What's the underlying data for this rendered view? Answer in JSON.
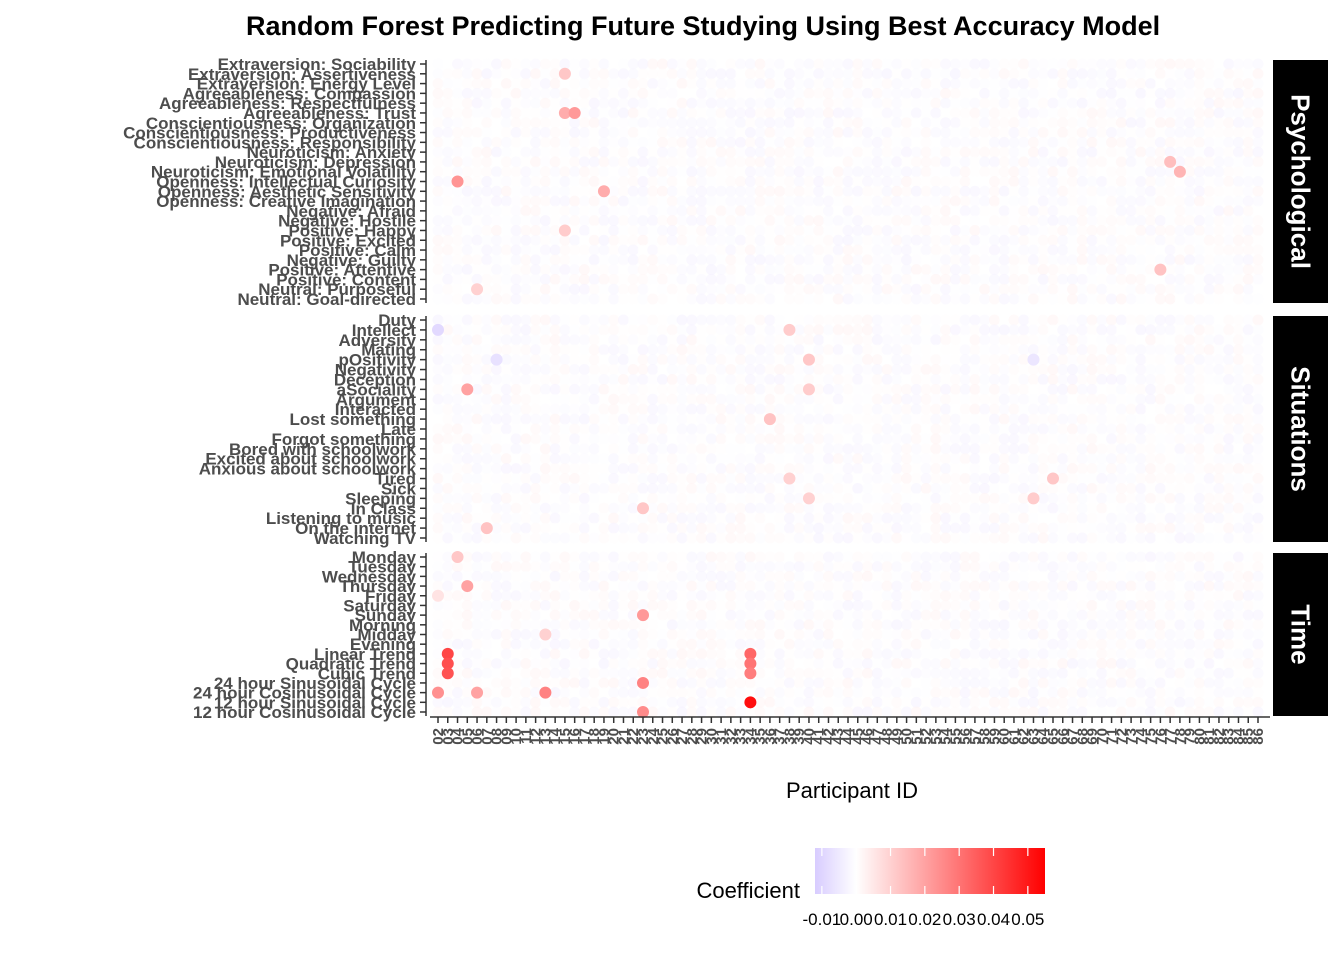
{
  "chart_data": {
    "type": "heatmap",
    "title": "Random Forest Predicting Future Studying Using Best Accuracy Model",
    "xlabel": "Participant ID",
    "ylabel": "",
    "x_ticks": [
      "02",
      "03",
      "04",
      "05",
      "06",
      "07",
      "08",
      "09",
      "10",
      "11",
      "12",
      "13",
      "14",
      "15",
      "16",
      "17",
      "18",
      "19",
      "20",
      "21",
      "22",
      "23",
      "24",
      "25",
      "26",
      "27",
      "28",
      "29",
      "30",
      "31",
      "32",
      "33",
      "34",
      "35",
      "36",
      "37",
      "38",
      "39",
      "40",
      "41",
      "42",
      "43",
      "44",
      "45",
      "46",
      "47",
      "48",
      "49",
      "50",
      "51",
      "52",
      "53",
      "54",
      "55",
      "56",
      "57",
      "58",
      "59",
      "60",
      "61",
      "62",
      "63",
      "64",
      "65",
      "66",
      "67",
      "68",
      "69",
      "70",
      "71",
      "72",
      "73",
      "74",
      "75",
      "76",
      "77",
      "78",
      "79",
      "80",
      "81",
      "82",
      "83",
      "84",
      "85",
      "86"
    ],
    "panels": [
      {
        "name": "Psychological",
        "rows": [
          "Extraversion: Sociability",
          "Extraversion: Assertiveness",
          "Extraversion: Energy Level",
          "Agreeableness: Compassion",
          "Agreeableness: Respectfulness",
          "Agreeableness: Trust",
          "Conscientiousness: Organization",
          "Conscientiousness: Productiveness",
          "Conscientiousness: Responsibility",
          "Neuroticism: Anxiety",
          "Neuroticism: Depression",
          "Neuroticism: Emotional Volatility",
          "Openness: Intellectual Curiosity",
          "Openness: Aesthetic Sensitivity",
          "Openness: Creative Imagination",
          "Negative: Afraid",
          "Negative: Hostile",
          "Positive: Happy",
          "Positive: Excited",
          "Positive: Calm",
          "Negative: Guilty",
          "Positive: Attentive",
          "Positive: Content",
          "Neutral: Purposeful",
          "Neutral: Goal-directed"
        ]
      },
      {
        "name": "Situations",
        "rows": [
          "Duty",
          "Intellect",
          "Adversity",
          "Mating",
          "pOsitivity",
          "Negativity",
          "Deception",
          "aSociality",
          "Argument",
          "Interacted",
          "Lost something",
          "Late",
          "Forgot something",
          "Bored with schoolwork",
          "Excited about schoolwork",
          "Anxious about schoolwork",
          "Tired",
          "Sick",
          "Sleeping",
          "In Class",
          "Listening to music",
          "On the internet",
          "Watching TV"
        ]
      },
      {
        "name": "Time",
        "rows": [
          "Monday",
          "Tuesday",
          "Wednesday",
          "Thursday",
          "Friday",
          "Saturday",
          "Sunday",
          "Morning",
          "Midday",
          "Evening",
          "Linear Trend",
          "Quadratic Trend",
          "Cubic Trend",
          "24 hour Sinusoidal Cycle",
          "24 hour Cosinusoidal Cycle",
          "12 hour Sinusoidal Cycle",
          "12 hour Cosinusoidal Cycle"
        ]
      }
    ],
    "points": [
      {
        "panel": "Psychological",
        "row": "Openness: Intellectual Curiosity",
        "x": "04",
        "value": 0.023
      },
      {
        "panel": "Psychological",
        "row": "Agreeableness: Trust",
        "x": "15",
        "value": 0.018
      },
      {
        "panel": "Psychological",
        "row": "Agreeableness: Trust",
        "x": "16",
        "value": 0.022
      },
      {
        "panel": "Psychological",
        "row": "Extraversion: Assertiveness",
        "x": "15",
        "value": 0.012
      },
      {
        "panel": "Psychological",
        "row": "Openness: Aesthetic Sensitivity",
        "x": "19",
        "value": 0.018
      },
      {
        "panel": "Psychological",
        "row": "Neuroticism: Depression",
        "x": "77",
        "value": 0.014
      },
      {
        "panel": "Psychological",
        "row": "Neuroticism: Emotional Volatility",
        "x": "78",
        "value": 0.016
      },
      {
        "panel": "Psychological",
        "row": "Positive: Attentive",
        "x": "76",
        "value": 0.013
      },
      {
        "panel": "Psychological",
        "row": "Positive: Happy",
        "x": "15",
        "value": 0.011
      },
      {
        "panel": "Psychological",
        "row": "Neutral: Purposeful",
        "x": "06",
        "value": 0.01
      },
      {
        "panel": "Situations",
        "row": "Intellect",
        "x": "02",
        "value": -0.009
      },
      {
        "panel": "Situations",
        "row": "pOsitivity",
        "x": "08",
        "value": -0.007
      },
      {
        "panel": "Situations",
        "row": "aSociality",
        "x": "05",
        "value": 0.02
      },
      {
        "panel": "Situations",
        "row": "Intellect",
        "x": "38",
        "value": 0.011
      },
      {
        "panel": "Situations",
        "row": "pOsitivity",
        "x": "40",
        "value": 0.012
      },
      {
        "panel": "Situations",
        "row": "aSociality",
        "x": "40",
        "value": 0.011
      },
      {
        "panel": "Situations",
        "row": "Lost something",
        "x": "36",
        "value": 0.013
      },
      {
        "panel": "Situations",
        "row": "Tired",
        "x": "38",
        "value": 0.01
      },
      {
        "panel": "Situations",
        "row": "Tired",
        "x": "65",
        "value": 0.012
      },
      {
        "panel": "Situations",
        "row": "Sleeping",
        "x": "63",
        "value": 0.011
      },
      {
        "panel": "Situations",
        "row": "Sleeping",
        "x": "40",
        "value": 0.01
      },
      {
        "panel": "Situations",
        "row": "On the internet",
        "x": "07",
        "value": 0.013
      },
      {
        "panel": "Situations",
        "row": "In Class",
        "x": "23",
        "value": 0.012
      },
      {
        "panel": "Situations",
        "row": "pOsitivity",
        "x": "63",
        "value": -0.006
      },
      {
        "panel": "Time",
        "row": "Monday",
        "x": "04",
        "value": 0.012
      },
      {
        "panel": "Time",
        "row": "Thursday",
        "x": "05",
        "value": 0.02
      },
      {
        "panel": "Time",
        "row": "Sunday",
        "x": "23",
        "value": 0.022
      },
      {
        "panel": "Time",
        "row": "Midday",
        "x": "13",
        "value": 0.01
      },
      {
        "panel": "Time",
        "row": "Linear Trend",
        "x": "03",
        "value": 0.04
      },
      {
        "panel": "Time",
        "row": "Quadratic Trend",
        "x": "03",
        "value": 0.038
      },
      {
        "panel": "Time",
        "row": "Cubic Trend",
        "x": "03",
        "value": 0.037
      },
      {
        "panel": "Time",
        "row": "Linear Trend",
        "x": "34",
        "value": 0.033
      },
      {
        "panel": "Time",
        "row": "Quadratic Trend",
        "x": "34",
        "value": 0.03
      },
      {
        "panel": "Time",
        "row": "Cubic Trend",
        "x": "34",
        "value": 0.028
      },
      {
        "panel": "Time",
        "row": "24 hour Sinusoidal Cycle",
        "x": "23",
        "value": 0.027
      },
      {
        "panel": "Time",
        "row": "24 hour Cosinusoidal Cycle",
        "x": "02",
        "value": 0.024
      },
      {
        "panel": "Time",
        "row": "24 hour Cosinusoidal Cycle",
        "x": "06",
        "value": 0.02
      },
      {
        "panel": "Time",
        "row": "24 hour Cosinusoidal Cycle",
        "x": "13",
        "value": 0.027
      },
      {
        "panel": "Time",
        "row": "12 hour Sinusoidal Cycle",
        "x": "34",
        "value": 0.052
      },
      {
        "panel": "Time",
        "row": "12 hour Cosinusoidal Cycle",
        "x": "23",
        "value": 0.025
      },
      {
        "panel": "Time",
        "row": "Friday",
        "x": "02",
        "value": 0.006
      }
    ],
    "legend": {
      "title": "Coefficient",
      "position": "bottom",
      "ticks": [
        "-0.01",
        "0.00",
        "0.01",
        "0.02",
        "0.03",
        "0.04",
        "0.05"
      ],
      "range": [
        -0.012,
        0.055
      ],
      "low_color": "#d8ccff",
      "mid_color": "#ffffff",
      "high_color": "#ff0000"
    },
    "grid": false
  }
}
